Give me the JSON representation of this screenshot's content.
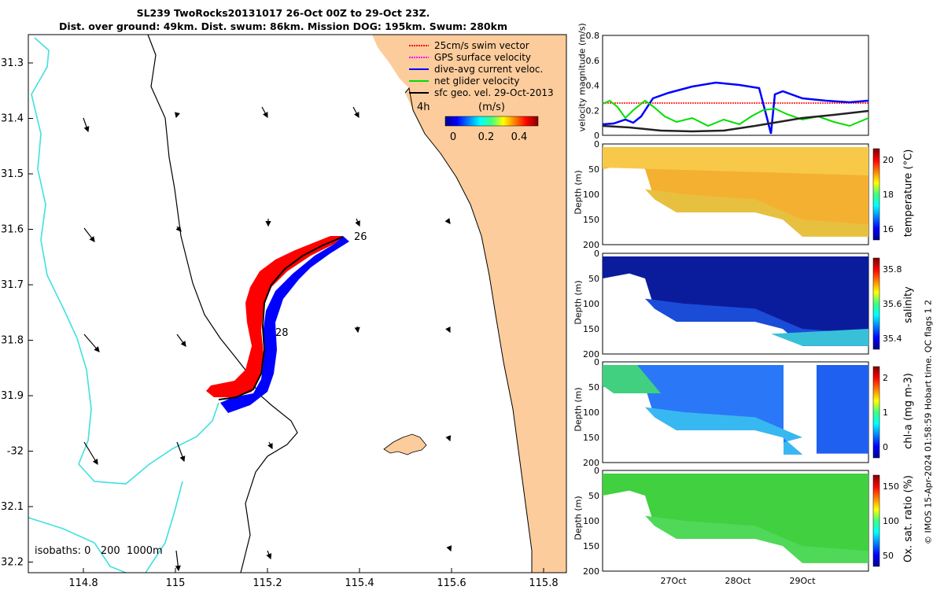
{
  "title": {
    "line1": "SL239 TwoRocks20131017 26-Oct 00Z to 29-Oct 23Z.",
    "line2": "Dist. over ground: 49km. Dist. swum: 86km. Mission DOG: 195km. Swum: 280km"
  },
  "map": {
    "lat_ticks": [
      "31.3",
      "31.4",
      "31.5",
      "31.6",
      "31.7",
      "31.8",
      "31.9",
      "-32",
      "32.1",
      "32.2"
    ],
    "lon_ticks": [
      "114.8",
      "115",
      "115.2",
      "115.4",
      "115.6",
      "115.8"
    ],
    "legend": [
      {
        "label": "25cm/s swim vector",
        "color": "#ff0000"
      },
      {
        "label": "GPS surface velocity",
        "color": "#ff00ff"
      },
      {
        "label": "dive-avg current veloc.",
        "color": "#0000ff"
      },
      {
        "label": "net glider velocity",
        "color": "#00dd00"
      },
      {
        "label": "sfc geo. vel. 29-Oct-2013",
        "color": "#000000"
      }
    ],
    "time_label": "4h",
    "colorbar_unit": "(m/s)",
    "colorbar_ticks": [
      "0",
      "0.2",
      "0.4"
    ],
    "day_labels": [
      "26",
      "28"
    ],
    "isobaths_label": "isobaths: 0   200  1000m",
    "colors": {
      "land": "#fccc9c",
      "isobath_200": "#40e0e0",
      "coast": "#000000"
    }
  },
  "velocity_panel": {
    "ylabel": "velocity magnitude (m/s)",
    "yticks": [
      "0",
      "0.2",
      "0.4",
      "0.6",
      "0.8"
    ]
  },
  "section_panels": [
    {
      "id": "temperature",
      "cbar_label": "temperature (°C)",
      "cbar_ticks": [
        "16",
        "18",
        "20"
      ],
      "ylabel": "Depth (m)",
      "yticks": [
        "0",
        "50",
        "100",
        "150",
        "200"
      ]
    },
    {
      "id": "salinity",
      "cbar_label": "salinity",
      "cbar_ticks": [
        "35.4",
        "35.6",
        "35.8"
      ],
      "ylabel": "Depth (m)",
      "yticks": [
        "0",
        "50",
        "100",
        "150",
        "200"
      ]
    },
    {
      "id": "chla",
      "cbar_label": "chl-a (mg m-3)",
      "cbar_ticks": [
        "0",
        "1",
        "2"
      ],
      "ylabel": "Depth (m)",
      "yticks": [
        "0",
        "50",
        "100",
        "150",
        "200"
      ]
    },
    {
      "id": "oxygen",
      "cbar_label": "Ox. sat. ratio (%)",
      "cbar_ticks": [
        "50",
        "100",
        "150"
      ],
      "ylabel": "Depth (m)",
      "yticks": [
        "0",
        "50",
        "100",
        "150",
        "200"
      ]
    }
  ],
  "time_ticks": [
    "27Oct",
    "28Oct",
    "29Oct"
  ],
  "qc_flags_label": "QC flags 1  2",
  "footer": "© IMOS 15-Apr-2024 01:58:59 Hobart time."
}
